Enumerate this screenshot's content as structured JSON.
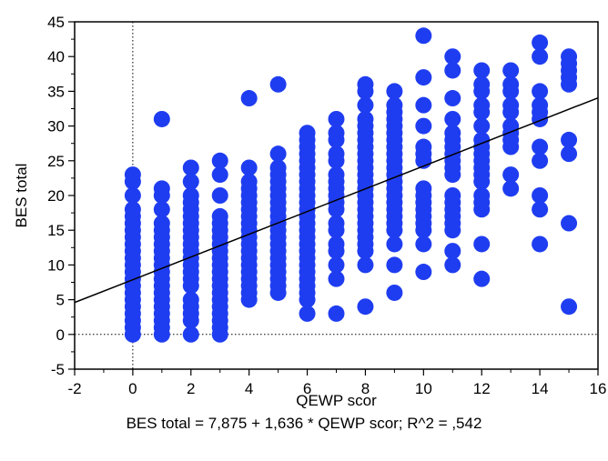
{
  "chart_data": {
    "type": "scatter",
    "xlabel": "QEWP scor",
    "ylabel": "BES total",
    "xlim": [
      -2,
      16
    ],
    "ylim": [
      -5,
      45
    ],
    "x_ticks": [
      -2,
      0,
      2,
      4,
      6,
      8,
      10,
      12,
      14,
      16
    ],
    "y_ticks": [
      -5,
      0,
      5,
      10,
      15,
      20,
      25,
      30,
      35,
      40,
      45
    ],
    "x_tick_labels": [
      "-2",
      "0",
      "2",
      "4",
      "6",
      "8",
      "10",
      "12",
      "14",
      "16"
    ],
    "y_tick_labels": [
      "-5",
      "0",
      "5",
      "10",
      "15",
      "20",
      "25",
      "30",
      "35",
      "40",
      "45"
    ],
    "grid": false,
    "reference_lines": {
      "x": 0,
      "y": 0,
      "style": "dotted"
    },
    "regression": {
      "intercept": 7.875,
      "slope": 1.636,
      "r_squared": 0.542
    },
    "equation_text": "BES total = 7,875 + 1,636 * QEWP scor; R^2 = ,542",
    "marker_color": "#1f3df0",
    "line_color": "#000000",
    "points_by_x": [
      {
        "x": 0,
        "y": [
          0,
          1,
          2,
          3,
          4,
          5,
          6,
          7,
          8,
          9,
          10,
          11,
          12,
          13,
          14,
          15,
          16,
          17,
          18,
          20,
          22,
          23
        ]
      },
      {
        "x": 1,
        "y": [
          0,
          1,
          2,
          3,
          4,
          5,
          6,
          7,
          8,
          9,
          10,
          11,
          12,
          13,
          14,
          15,
          16,
          18,
          20,
          21,
          31
        ]
      },
      {
        "x": 2,
        "y": [
          0,
          2,
          3,
          4,
          5,
          7,
          8,
          9,
          10,
          11,
          12,
          13,
          14,
          15,
          16,
          17,
          18,
          19,
          20,
          22,
          24
        ]
      },
      {
        "x": 3,
        "y": [
          0,
          1,
          2,
          3,
          4,
          5,
          6,
          7,
          8,
          9,
          10,
          11,
          12,
          13,
          14,
          15,
          16,
          17,
          20,
          23,
          25
        ]
      },
      {
        "x": 4,
        "y": [
          5,
          6,
          7,
          8,
          9,
          10,
          11,
          12,
          13,
          14,
          15,
          16,
          17,
          18,
          19,
          20,
          21,
          22,
          24,
          34
        ]
      },
      {
        "x": 5,
        "y": [
          6,
          7,
          8,
          9,
          10,
          11,
          12,
          13,
          14,
          15,
          16,
          17,
          18,
          19,
          20,
          21,
          22,
          23,
          24,
          26,
          36
        ]
      },
      {
        "x": 6,
        "y": [
          3,
          5,
          6,
          7,
          8,
          9,
          10,
          11,
          12,
          13,
          14,
          15,
          16,
          17,
          18,
          19,
          20,
          21,
          22,
          23,
          24,
          25,
          26,
          27,
          28,
          29
        ]
      },
      {
        "x": 7,
        "y": [
          3,
          8,
          10,
          12,
          13,
          15,
          16,
          18,
          19,
          20,
          21,
          22,
          23,
          25,
          26,
          28,
          29,
          31
        ]
      },
      {
        "x": 8,
        "y": [
          4,
          10,
          12,
          13,
          14,
          15,
          16,
          17,
          18,
          19,
          20,
          21,
          22,
          23,
          24,
          25,
          26,
          27,
          28,
          29,
          30,
          31,
          33,
          35,
          36
        ]
      },
      {
        "x": 9,
        "y": [
          6,
          10,
          13,
          15,
          16,
          17,
          18,
          19,
          20,
          21,
          22,
          23,
          24,
          25,
          26,
          27,
          28,
          29,
          30,
          31,
          32,
          33,
          35
        ]
      },
      {
        "x": 10,
        "y": [
          9,
          13,
          15,
          16,
          17,
          18,
          19,
          20,
          21,
          25,
          26,
          27,
          30,
          33,
          37,
          43
        ]
      },
      {
        "x": 11,
        "y": [
          10,
          12,
          15,
          16,
          17,
          18,
          19,
          20,
          23,
          24,
          25,
          26,
          27,
          28,
          29,
          31,
          34,
          38,
          40
        ]
      },
      {
        "x": 12,
        "y": [
          8,
          13,
          18,
          19,
          20,
          22,
          23,
          24,
          25,
          26,
          27,
          28,
          30,
          32,
          33,
          35,
          36,
          38
        ]
      },
      {
        "x": 13,
        "y": [
          21,
          23,
          27,
          28,
          29,
          30,
          32,
          33,
          35,
          36,
          38
        ]
      },
      {
        "x": 14,
        "y": [
          13,
          18,
          20,
          25,
          27,
          31,
          32,
          33,
          35,
          40,
          42
        ]
      },
      {
        "x": 15,
        "y": [
          4,
          16,
          26,
          28,
          36,
          37,
          38,
          39,
          40
        ]
      }
    ]
  }
}
